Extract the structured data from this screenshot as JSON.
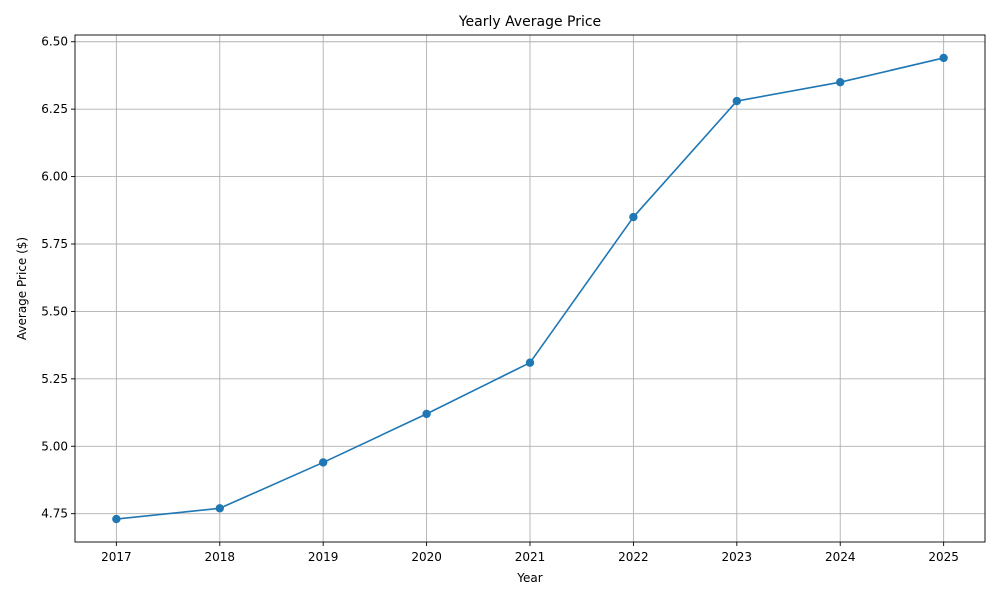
{
  "chart_data": {
    "type": "line",
    "title": "Yearly Average Price",
    "xlabel": "Year",
    "ylabel": "Average Price ($)",
    "categories": [
      "2017",
      "2018",
      "2019",
      "2020",
      "2021",
      "2022",
      "2023",
      "2024",
      "2025"
    ],
    "x": [
      2017,
      2018,
      2019,
      2020,
      2021,
      2022,
      2023,
      2024,
      2025
    ],
    "series": [
      {
        "values": [
          4.73,
          4.77,
          4.94,
          5.12,
          5.31,
          5.85,
          6.28,
          6.35,
          6.44
        ],
        "color": "#1f77b4",
        "marker": "circle"
      }
    ],
    "xlim": [
      2016.6,
      2025.4
    ],
    "ylim": [
      4.645,
      6.525
    ],
    "y_ticks": [
      4.75,
      5.0,
      5.25,
      5.5,
      5.75,
      6.0,
      6.25,
      6.5
    ],
    "y_tick_labels": [
      "4.75",
      "5.00",
      "5.25",
      "5.50",
      "5.75",
      "6.00",
      "6.25",
      "6.50"
    ],
    "grid": true,
    "legend": "none"
  }
}
